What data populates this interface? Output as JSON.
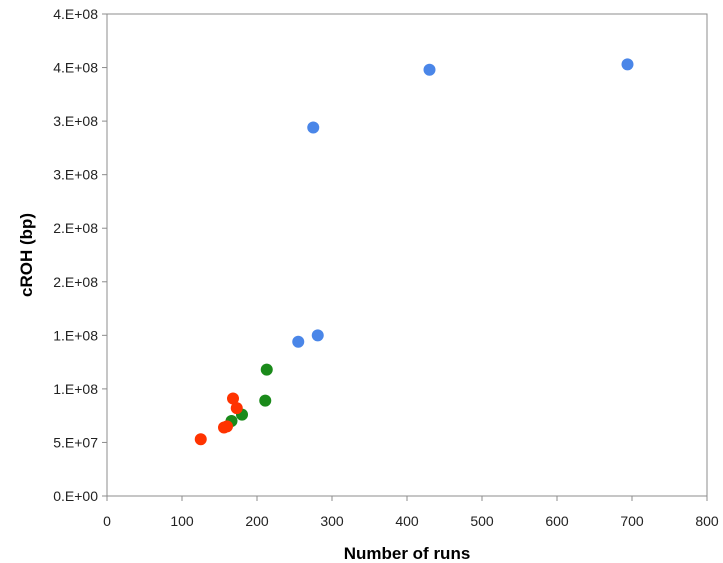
{
  "chart_data": {
    "type": "scatter",
    "title": "",
    "xlabel": "Number of runs",
    "ylabel": "cROH (bp)",
    "xlim": [
      0,
      800
    ],
    "ylim": [
      0,
      450000000
    ],
    "x_ticks": [
      0,
      100,
      200,
      300,
      400,
      500,
      600,
      700,
      800
    ],
    "x_tick_labels": [
      "0",
      "100",
      "200",
      "300",
      "400",
      "500",
      "600",
      "700",
      "800"
    ],
    "y_ticks": [
      0,
      50000000,
      100000000,
      150000000,
      200000000,
      250000000,
      300000000,
      350000000,
      400000000,
      450000000
    ],
    "y_tick_labels": [
      "0.E+00",
      "5.E+07",
      "1.E+08",
      "1.E+08",
      "2.E+08",
      "2.E+08",
      "3.E+08",
      "3.E+08",
      "4.E+08",
      "4.E+08"
    ],
    "grid": false,
    "legend": "none",
    "series": [
      {
        "color": "#4a86e8",
        "points": [
          {
            "x": 255,
            "y": 144000000
          },
          {
            "x": 281,
            "y": 150000000
          },
          {
            "x": 275,
            "y": 344000000
          },
          {
            "x": 430,
            "y": 398000000
          },
          {
            "x": 694,
            "y": 403000000
          }
        ]
      },
      {
        "color": "#1a8a1a",
        "points": [
          {
            "x": 166,
            "y": 70000000
          },
          {
            "x": 180,
            "y": 76000000
          },
          {
            "x": 211,
            "y": 89000000
          },
          {
            "x": 213,
            "y": 118000000
          }
        ]
      },
      {
        "color": "#ff3300",
        "points": [
          {
            "x": 125,
            "y": 53000000
          },
          {
            "x": 156,
            "y": 64000000
          },
          {
            "x": 160,
            "y": 65000000
          },
          {
            "x": 168,
            "y": 91000000
          },
          {
            "x": 173,
            "y": 82000000
          }
        ]
      }
    ]
  }
}
